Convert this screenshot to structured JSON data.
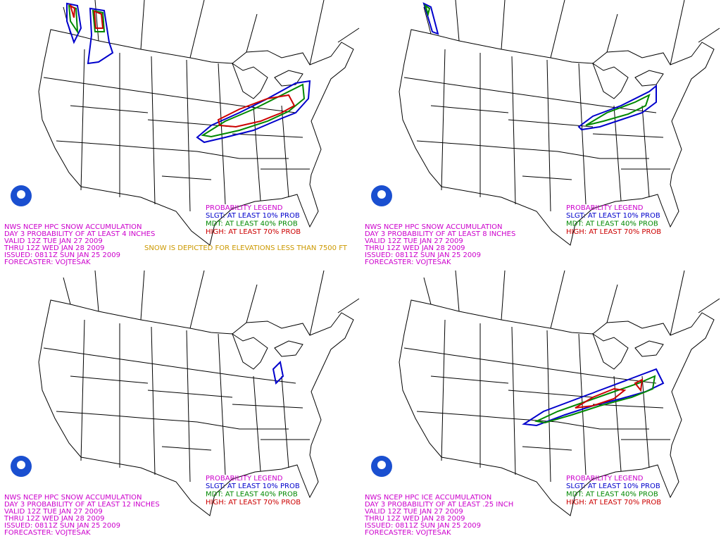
{
  "panels": [
    {
      "header": [
        "NWS NCEP HPC SNOW ACCUMULATION",
        "DAY 3 PROBABILITY OF AT LEAST 4 INCHES",
        "VALID 12Z TUE JAN 27 2009",
        "THRU 12Z WED JAN 28 2009",
        "ISSUED: 0811Z SUN JAN 25 2009",
        "FORECASTER: VOJTESAK"
      ],
      "legend": {
        "title": "PROBABILITY LEGEND",
        "entries": [
          "SLGT: AT LEAST 10% PROB",
          "MDT: AT LEAST 40% PROB",
          "HIGH: AT LEAST 70% PROB"
        ]
      },
      "note": "SNOW IS DEPICTED FOR ELEVATIONS LESS THAN 7500 FT"
    },
    {
      "header": [
        "NWS NCEP HPC SNOW ACCUMULATION",
        "DAY 3 PROBABILITY OF AT LEAST 8 INCHES",
        "VALID 12Z TUE JAN 27 2009",
        "THRU 12Z WED JAN 28 2009",
        "ISSUED: 0811Z SUN JAN 25 2009",
        "FORECASTER: VOJTESAK"
      ],
      "legend": {
        "title": "PROBABILITY LEGEND",
        "entries": [
          "SLGT: AT LEAST 10% PROB",
          "MDT: AT LEAST 40% PROB",
          "HIGH: AT LEAST 70% PROB"
        ]
      }
    },
    {
      "header": [
        "NWS NCEP HPC SNOW ACCUMULATION",
        "DAY 3 PROBABILITY OF AT LEAST 12 INCHES",
        "VALID 12Z TUE JAN 27 2009",
        "THRU 12Z WED JAN 28 2009",
        "ISSUED: 0811Z SUN JAN 25 2009",
        "FORECASTER: VOJTESAK"
      ],
      "legend": {
        "title": "PROBABILITY LEGEND",
        "entries": [
          "SLGT: AT LEAST 10% PROB",
          "MDT: AT LEAST 40% PROB",
          "HIGH: AT LEAST 70% PROB"
        ]
      }
    },
    {
      "header": [
        "NWS NCEP HPC ICE ACCUMULATION",
        "DAY 3 PROBABILITY OF AT LEAST .25 INCH",
        "VALID 12Z TUE JAN 27 2009",
        "THRU 12Z WED JAN 28 2009",
        "ISSUED: 0811Z SUN JAN 25 2009",
        "FORECASTER: VOJTESAK"
      ],
      "legend": {
        "title": "PROBABILITY LEGEND",
        "entries": [
          "SLGT: AT LEAST 10% PROB",
          "MDT: AT LEAST 40% PROB",
          "HIGH: AT LEAST 70% PROB"
        ]
      }
    }
  ]
}
